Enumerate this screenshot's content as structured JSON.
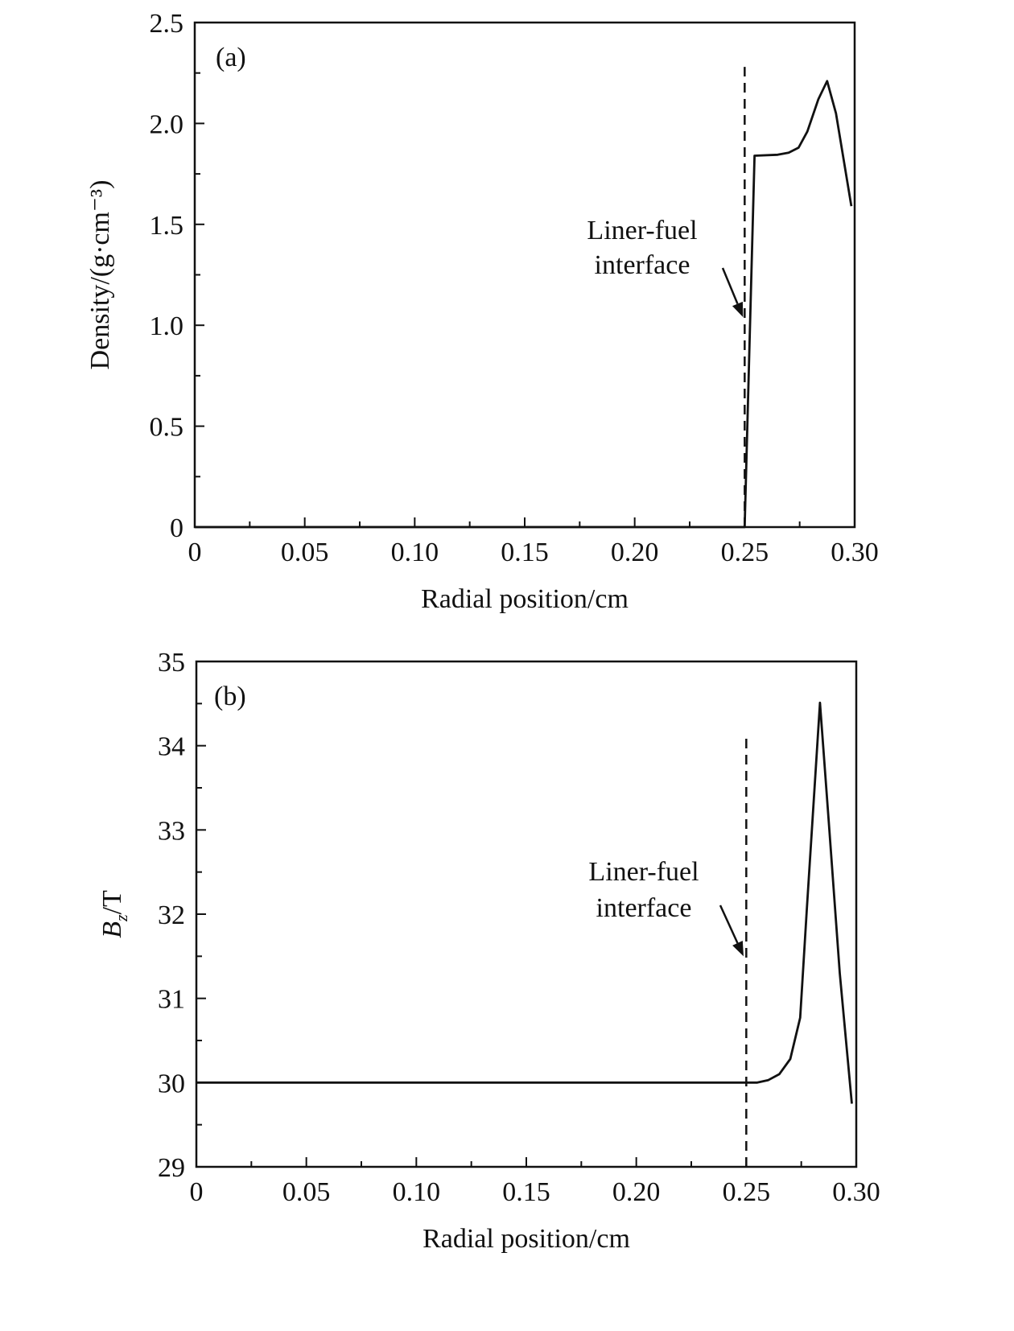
{
  "chart_data": [
    {
      "type": "line",
      "panel_label": "(a)",
      "xlabel": "Radial position/cm",
      "ylabel": "Density/(g·cm⁻³)",
      "xlim": [
        0,
        0.3
      ],
      "ylim": [
        0,
        2.5
      ],
      "xticks": [
        "0",
        "0.05",
        "0.10",
        "0.15",
        "0.20",
        "0.25",
        "0.30"
      ],
      "yticks": [
        "0",
        "0.5",
        "1.0",
        "1.5",
        "2.0",
        "2.5"
      ],
      "grid": false,
      "series": [
        {
          "style": "solid",
          "x": [
            0,
            0.25,
            0.2545,
            0.265,
            0.27,
            0.2745,
            0.2785,
            0.2835,
            0.2875,
            0.2915,
            0.2985
          ],
          "y": [
            0,
            0,
            1.84,
            1.845,
            1.855,
            1.88,
            1.96,
            2.12,
            2.21,
            2.05,
            1.59
          ]
        }
      ],
      "reference_line": {
        "style": "dashed",
        "x": 0.25,
        "y_range": [
          0,
          2.28
        ]
      },
      "annotation": {
        "lines": [
          "Liner-fuel",
          "interface"
        ],
        "points_to": {
          "x": 0.25,
          "y": 1.04
        }
      }
    },
    {
      "type": "line",
      "panel_label": "(b)",
      "xlabel": "Radial position/cm",
      "ylabel_main": "B",
      "ylabel_sub": "z",
      "ylabel_unit": "/T",
      "xlim": [
        0,
        0.3
      ],
      "ylim": [
        29,
        35
      ],
      "xticks": [
        "0",
        "0.05",
        "0.10",
        "0.15",
        "0.20",
        "0.25",
        "0.30"
      ],
      "yticks": [
        "29",
        "30",
        "31",
        "32",
        "33",
        "34",
        "35"
      ],
      "grid": false,
      "series": [
        {
          "style": "solid",
          "x": [
            0,
            0.25,
            0.255,
            0.26,
            0.265,
            0.27,
            0.2745,
            0.2775,
            0.2835,
            0.2875,
            0.2925,
            0.298
          ],
          "y": [
            30,
            30,
            30.0,
            30.03,
            30.1,
            30.28,
            30.77,
            32.05,
            34.51,
            33.1,
            31.3,
            29.75
          ]
        }
      ],
      "reference_line": {
        "style": "dashed",
        "x": 0.25,
        "y_range": [
          29,
          34.1
        ]
      },
      "annotation": {
        "lines": [
          "Liner-fuel",
          "interface"
        ],
        "points_to": {
          "x": 0.2495,
          "y": 31.5
        }
      }
    }
  ]
}
